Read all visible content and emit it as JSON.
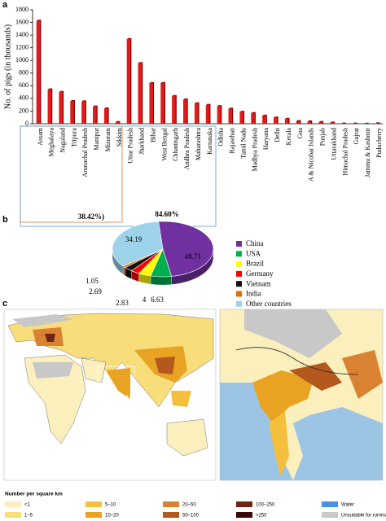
{
  "panels": [
    "a",
    "b",
    "c"
  ],
  "chart_data": [
    {
      "type": "bar",
      "y_label": "No. of pigs (in thousands)",
      "categories": [
        "Assam",
        "Meghalaya",
        "Nagaland",
        "Tripura",
        "Arunachal Pradesh",
        "Manipur",
        "Mizoram",
        "Sikkim",
        "Uttar Pradesh",
        "Jharkhand",
        "Bihar",
        "West Bengal",
        "Chhattisgarh",
        "Andhra Pradesh",
        "Maharashtra",
        "Karnataka",
        "Odisha",
        "Rajasthan",
        "Tamil Nadu",
        "Madhya Pradesh",
        "Haryana",
        "Delhi",
        "Kerala",
        "Goa",
        "A & Nicobar Islands",
        "Punjab",
        "Uttarakhand",
        "Himachal Pradesh",
        "Gujrat",
        "Jammu & Kashmir",
        "Puducherry"
      ],
      "values": [
        1630,
        545,
        505,
        360,
        355,
        275,
        245,
        30,
        1340,
        960,
        645,
        645,
        440,
        385,
        325,
        300,
        280,
        240,
        190,
        170,
        130,
        100,
        80,
        45,
        40,
        30,
        20,
        5,
        5,
        2,
        8
      ],
      "color": "#e31a1c",
      "ylim": [
        0,
        1800
      ],
      "yticks": [
        0,
        200,
        400,
        600,
        800,
        1000,
        1200,
        1400,
        1600,
        1800
      ],
      "annotations": [
        {
          "text": "38.42%)",
          "color": "#c00000"
        },
        {
          "text": "84.60%",
          "color": "#1f5f8b"
        }
      ]
    },
    {
      "type": "pie",
      "categories": [
        "China",
        "USA",
        "Brazil",
        "Germany",
        "Vietnam",
        "India",
        "Other countries"
      ],
      "values": [
        48.71,
        6.63,
        4,
        2.83,
        2.69,
        1.05,
        34.19
      ],
      "colors": [
        "#7030a0",
        "#00b050",
        "#ffff00",
        "#ff0000",
        "#111111",
        "#e46c0a",
        "#9dd3ea"
      ]
    }
  ],
  "map_legend": {
    "title": "Number per square km",
    "items": [
      {
        "label": "<1",
        "color": "#fbf0bd"
      },
      {
        "label": "1–5",
        "color": "#f8de7a"
      },
      {
        "label": "5–10",
        "color": "#f3bf3c"
      },
      {
        "label": "10–20",
        "color": "#e9a323"
      },
      {
        "label": "20–50",
        "color": "#d98232"
      },
      {
        "label": "50–100",
        "color": "#b4581e"
      },
      {
        "label": "100–250",
        "color": "#6e2410"
      },
      {
        "label": ">250",
        "color": "#3a0805"
      },
      {
        "label": "Water",
        "color": "#4a90e2"
      },
      {
        "label": "Unsuitable for ruminat",
        "color": "#c8c8c8"
      }
    ]
  }
}
